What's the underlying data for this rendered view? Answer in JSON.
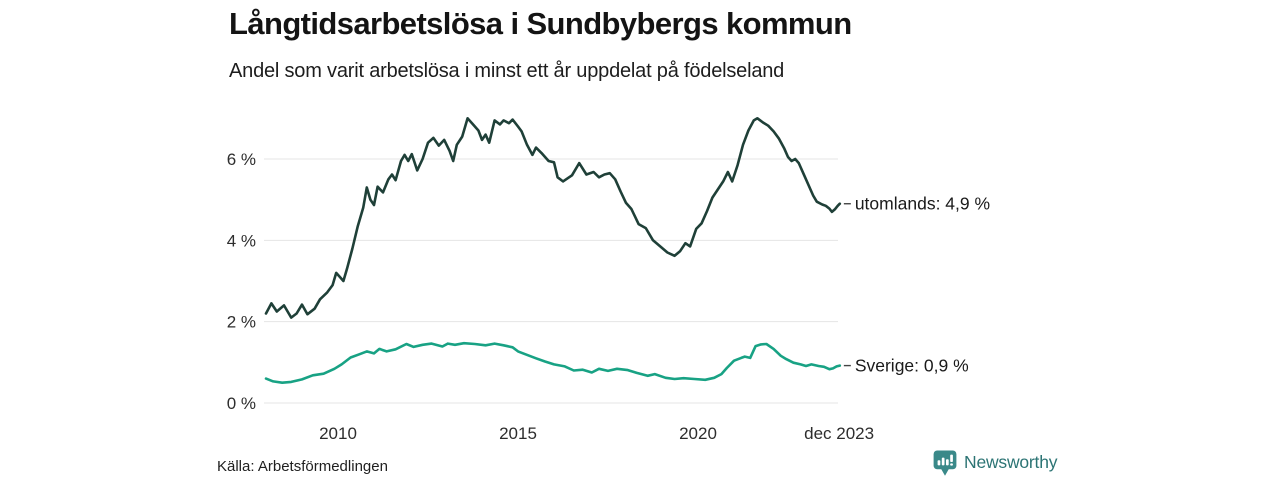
{
  "header": {
    "title": "Långtidsarbetslösa i Sundbybergs kommun",
    "subtitle": "Andel som varit arbetslösa i minst ett år uppdelat på födelseland"
  },
  "footer": {
    "source": "Källa: Arbetsförmedlingen",
    "logo_text": "Newsworthy",
    "logo_color": "#3a8989",
    "logo_text_color": "#2c7474"
  },
  "chart_data": {
    "type": "line",
    "title": "Långtidsarbetslösa i Sundbybergs kommun",
    "subtitle": "Andel som varit arbetslösa i minst ett år uppdelat på födelseland",
    "unit": "%",
    "grid_color": "#e4e4e4",
    "axis_text_color": "#2d2d2d",
    "legend_text_color": "#1a1a1a",
    "legend_dash_color": "#444444",
    "x_axis": {
      "range": [
        2008.0,
        2023.94
      ],
      "ticks": [
        {
          "year": 2010,
          "label": "2010"
        },
        {
          "year": 2015,
          "label": "2015"
        },
        {
          "year": 2020,
          "label": "2020"
        },
        {
          "year": 2023.92,
          "label": "dec 2023"
        }
      ]
    },
    "y_axis": {
      "range": [
        0,
        7.2
      ],
      "ticks": [
        {
          "value": 6,
          "label": "6 %"
        },
        {
          "value": 4,
          "label": "4 %"
        },
        {
          "value": 2,
          "label": "2 %"
        },
        {
          "value": 0,
          "label": "0 %"
        }
      ]
    },
    "series": [
      {
        "name": "utomlands",
        "end_label": "utomlands: 4,9 %",
        "end_value": 4.9,
        "color": "#1f4038",
        "points": [
          [
            2008.0,
            2.2
          ],
          [
            2008.15,
            2.45
          ],
          [
            2008.3,
            2.25
          ],
          [
            2008.5,
            2.4
          ],
          [
            2008.7,
            2.1
          ],
          [
            2008.85,
            2.2
          ],
          [
            2009.0,
            2.42
          ],
          [
            2009.15,
            2.18
          ],
          [
            2009.35,
            2.32
          ],
          [
            2009.5,
            2.55
          ],
          [
            2009.7,
            2.72
          ],
          [
            2009.85,
            2.9
          ],
          [
            2009.95,
            3.2
          ],
          [
            2010.05,
            3.1
          ],
          [
            2010.15,
            3.0
          ],
          [
            2010.25,
            3.3
          ],
          [
            2010.4,
            3.8
          ],
          [
            2010.55,
            4.35
          ],
          [
            2010.7,
            4.8
          ],
          [
            2010.8,
            5.3
          ],
          [
            2010.9,
            5.0
          ],
          [
            2011.0,
            4.87
          ],
          [
            2011.1,
            5.32
          ],
          [
            2011.25,
            5.18
          ],
          [
            2011.4,
            5.5
          ],
          [
            2011.5,
            5.62
          ],
          [
            2011.6,
            5.48
          ],
          [
            2011.75,
            5.95
          ],
          [
            2011.85,
            6.1
          ],
          [
            2011.95,
            5.95
          ],
          [
            2012.05,
            6.12
          ],
          [
            2012.2,
            5.72
          ],
          [
            2012.35,
            6.0
          ],
          [
            2012.5,
            6.4
          ],
          [
            2012.65,
            6.52
          ],
          [
            2012.8,
            6.33
          ],
          [
            2012.95,
            6.47
          ],
          [
            2013.1,
            6.2
          ],
          [
            2013.2,
            5.95
          ],
          [
            2013.3,
            6.35
          ],
          [
            2013.45,
            6.55
          ],
          [
            2013.6,
            7.0
          ],
          [
            2013.75,
            6.85
          ],
          [
            2013.9,
            6.7
          ],
          [
            2014.0,
            6.47
          ],
          [
            2014.1,
            6.6
          ],
          [
            2014.2,
            6.4
          ],
          [
            2014.35,
            6.95
          ],
          [
            2014.5,
            6.85
          ],
          [
            2014.6,
            6.95
          ],
          [
            2014.75,
            6.88
          ],
          [
            2014.85,
            6.97
          ],
          [
            2015.0,
            6.8
          ],
          [
            2015.1,
            6.68
          ],
          [
            2015.25,
            6.35
          ],
          [
            2015.4,
            6.1
          ],
          [
            2015.5,
            6.28
          ],
          [
            2015.65,
            6.15
          ],
          [
            2015.85,
            5.95
          ],
          [
            2016.0,
            5.92
          ],
          [
            2016.1,
            5.55
          ],
          [
            2016.25,
            5.45
          ],
          [
            2016.5,
            5.6
          ],
          [
            2016.7,
            5.9
          ],
          [
            2016.9,
            5.62
          ],
          [
            2017.1,
            5.68
          ],
          [
            2017.25,
            5.55
          ],
          [
            2017.4,
            5.62
          ],
          [
            2017.55,
            5.65
          ],
          [
            2017.7,
            5.5
          ],
          [
            2017.85,
            5.2
          ],
          [
            2018.0,
            4.92
          ],
          [
            2018.15,
            4.77
          ],
          [
            2018.35,
            4.4
          ],
          [
            2018.55,
            4.3
          ],
          [
            2018.75,
            4.0
          ],
          [
            2018.95,
            3.85
          ],
          [
            2019.15,
            3.7
          ],
          [
            2019.35,
            3.62
          ],
          [
            2019.5,
            3.73
          ],
          [
            2019.65,
            3.93
          ],
          [
            2019.78,
            3.85
          ],
          [
            2019.95,
            4.28
          ],
          [
            2020.1,
            4.42
          ],
          [
            2020.25,
            4.72
          ],
          [
            2020.4,
            5.05
          ],
          [
            2020.55,
            5.25
          ],
          [
            2020.7,
            5.45
          ],
          [
            2020.83,
            5.68
          ],
          [
            2020.95,
            5.45
          ],
          [
            2021.1,
            5.85
          ],
          [
            2021.25,
            6.35
          ],
          [
            2021.4,
            6.7
          ],
          [
            2021.55,
            6.95
          ],
          [
            2021.65,
            7.0
          ],
          [
            2021.8,
            6.9
          ],
          [
            2021.95,
            6.82
          ],
          [
            2022.1,
            6.68
          ],
          [
            2022.25,
            6.5
          ],
          [
            2022.4,
            6.25
          ],
          [
            2022.5,
            6.05
          ],
          [
            2022.6,
            5.95
          ],
          [
            2022.7,
            6.0
          ],
          [
            2022.8,
            5.9
          ],
          [
            2022.95,
            5.6
          ],
          [
            2023.1,
            5.3
          ],
          [
            2023.2,
            5.1
          ],
          [
            2023.3,
            4.95
          ],
          [
            2023.45,
            4.88
          ],
          [
            2023.55,
            4.85
          ],
          [
            2023.65,
            4.78
          ],
          [
            2023.72,
            4.7
          ],
          [
            2023.8,
            4.76
          ],
          [
            2023.88,
            4.85
          ],
          [
            2023.94,
            4.9
          ]
        ]
      },
      {
        "name": "Sverige",
        "end_label": "Sverige: 0,9 %",
        "end_value": 0.9,
        "color": "#18a284",
        "points": [
          [
            2008.0,
            0.6
          ],
          [
            2008.2,
            0.53
          ],
          [
            2008.45,
            0.5
          ],
          [
            2008.7,
            0.52
          ],
          [
            2009.0,
            0.58
          ],
          [
            2009.3,
            0.68
          ],
          [
            2009.6,
            0.72
          ],
          [
            2009.9,
            0.84
          ],
          [
            2010.1,
            0.95
          ],
          [
            2010.35,
            1.12
          ],
          [
            2010.6,
            1.2
          ],
          [
            2010.8,
            1.27
          ],
          [
            2011.0,
            1.22
          ],
          [
            2011.15,
            1.33
          ],
          [
            2011.35,
            1.27
          ],
          [
            2011.6,
            1.32
          ],
          [
            2011.9,
            1.45
          ],
          [
            2012.1,
            1.38
          ],
          [
            2012.35,
            1.43
          ],
          [
            2012.6,
            1.46
          ],
          [
            2012.9,
            1.39
          ],
          [
            2013.05,
            1.46
          ],
          [
            2013.25,
            1.43
          ],
          [
            2013.5,
            1.47
          ],
          [
            2013.8,
            1.45
          ],
          [
            2014.1,
            1.42
          ],
          [
            2014.35,
            1.46
          ],
          [
            2014.6,
            1.42
          ],
          [
            2014.85,
            1.37
          ],
          [
            2015.0,
            1.27
          ],
          [
            2015.2,
            1.2
          ],
          [
            2015.5,
            1.1
          ],
          [
            2015.75,
            1.02
          ],
          [
            2016.0,
            0.95
          ],
          [
            2016.3,
            0.9
          ],
          [
            2016.55,
            0.8
          ],
          [
            2016.8,
            0.82
          ],
          [
            2017.05,
            0.75
          ],
          [
            2017.25,
            0.84
          ],
          [
            2017.5,
            0.79
          ],
          [
            2017.75,
            0.84
          ],
          [
            2018.05,
            0.81
          ],
          [
            2018.3,
            0.74
          ],
          [
            2018.6,
            0.67
          ],
          [
            2018.8,
            0.71
          ],
          [
            2019.1,
            0.62
          ],
          [
            2019.35,
            0.59
          ],
          [
            2019.6,
            0.61
          ],
          [
            2019.9,
            0.59
          ],
          [
            2020.2,
            0.57
          ],
          [
            2020.45,
            0.62
          ],
          [
            2020.65,
            0.71
          ],
          [
            2020.8,
            0.86
          ],
          [
            2021.0,
            1.04
          ],
          [
            2021.2,
            1.11
          ],
          [
            2021.3,
            1.14
          ],
          [
            2021.45,
            1.11
          ],
          [
            2021.6,
            1.4
          ],
          [
            2021.75,
            1.44
          ],
          [
            2021.9,
            1.45
          ],
          [
            2022.1,
            1.33
          ],
          [
            2022.3,
            1.16
          ],
          [
            2022.45,
            1.08
          ],
          [
            2022.65,
            0.99
          ],
          [
            2022.85,
            0.95
          ],
          [
            2023.0,
            0.91
          ],
          [
            2023.15,
            0.95
          ],
          [
            2023.35,
            0.91
          ],
          [
            2023.5,
            0.89
          ],
          [
            2023.65,
            0.83
          ],
          [
            2023.75,
            0.85
          ],
          [
            2023.85,
            0.9
          ],
          [
            2023.94,
            0.92
          ]
        ]
      }
    ],
    "legend_position": "line-end-right"
  }
}
